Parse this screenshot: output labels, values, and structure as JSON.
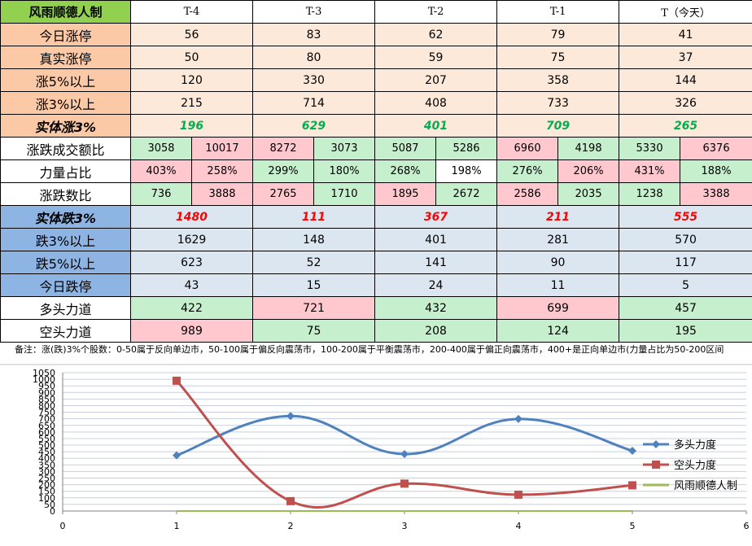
{
  "table": {
    "title": "风雨顺德人制",
    "headers": [
      "T-4",
      "T-3",
      "T-2",
      "T-1",
      "T（今天）"
    ],
    "rows_upper": [
      {
        "label": "今日涨停",
        "values": [
          "56",
          "83",
          "62",
          "79",
          "41"
        ]
      },
      {
        "label": "真实涨停",
        "values": [
          "50",
          "80",
          "59",
          "75",
          "37"
        ]
      },
      {
        "label": "涨5%以上",
        "values": [
          "120",
          "330",
          "207",
          "358",
          "144"
        ]
      },
      {
        "label": "涨3%以上",
        "values": [
          "215",
          "714",
          "408",
          "733",
          "326"
        ]
      },
      {
        "label": "实体涨3%",
        "values": [
          "196",
          "629",
          "401",
          "709",
          "265"
        ]
      }
    ],
    "rows_split": [
      {
        "label": "涨跌成交额比",
        "values": [
          [
            "3058",
            "10017"
          ],
          [
            "8272",
            "3073"
          ],
          [
            "5087",
            "5286"
          ],
          [
            "6960",
            "4198"
          ],
          [
            "5330",
            "6376"
          ]
        ]
      },
      {
        "label": "力量占比",
        "values": [
          [
            "403%",
            "258%"
          ],
          [
            "299%",
            "180%"
          ],
          [
            "268%",
            "198%"
          ],
          [
            "276%",
            "206%"
          ],
          [
            "431%",
            "188%"
          ]
        ]
      },
      {
        "label": "涨跌数比",
        "values": [
          [
            "736",
            "3888"
          ],
          [
            "2765",
            "1710"
          ],
          [
            "1895",
            "2672"
          ],
          [
            "2586",
            "2035"
          ],
          [
            "1238",
            "3388"
          ]
        ]
      }
    ],
    "rows_lower": [
      {
        "label": "实体跌3%",
        "values": [
          "1480",
          "111",
          "367",
          "211",
          "555"
        ]
      },
      {
        "label": "跌3%以上",
        "values": [
          "1629",
          "148",
          "401",
          "281",
          "570"
        ]
      },
      {
        "label": "跌5%以上",
        "values": [
          "623",
          "52",
          "141",
          "90",
          "117"
        ]
      },
      {
        "label": "今日跌停",
        "values": [
          "43",
          "15",
          "24",
          "11",
          "5"
        ]
      }
    ],
    "rows_force": [
      {
        "label": "多头力道",
        "values": [
          "422",
          "721",
          "432",
          "699",
          "457"
        ]
      },
      {
        "label": "空头力道",
        "values": [
          "989",
          "75",
          "208",
          "124",
          "195"
        ]
      }
    ]
  },
  "note": "备注：涨(跌)3%个股数：0-50属于反向单边市，50-100属于偏反向震荡市，100-200属于平衡震荡市，200-400属于偏正向震荡市，400+是正向单边市(力量占比为50-200区间",
  "colors": {
    "series_long": "#4f81bd",
    "series_short": "#c0504d",
    "series_flat": "#9bbb59"
  },
  "chart_data": {
    "type": "line",
    "x": [
      1,
      2,
      3,
      4,
      5
    ],
    "series": [
      {
        "name": "多头力度",
        "values": [
          422,
          721,
          432,
          699,
          457
        ]
      },
      {
        "name": "空头力度",
        "values": [
          989,
          75,
          208,
          124,
          195
        ]
      },
      {
        "name": "风雨顺德人制",
        "values": [
          0,
          0,
          0,
          0,
          0
        ]
      }
    ],
    "xlim": [
      0,
      6
    ],
    "ylim": [
      0,
      1050
    ],
    "x_ticks": [
      "0",
      "1",
      "2",
      "3",
      "4",
      "5",
      "6"
    ],
    "y_ticks": [
      "0",
      "50",
      "100",
      "150",
      "200",
      "250",
      "300",
      "350",
      "400",
      "450",
      "500",
      "550",
      "600",
      "650",
      "700",
      "750",
      "800",
      "850",
      "900",
      "950",
      "1000",
      "1050"
    ],
    "grid": true,
    "legend": "right",
    "legend_labels": [
      "多头力度",
      "空头力度",
      "风雨顺德人制"
    ],
    "smooth": true
  }
}
